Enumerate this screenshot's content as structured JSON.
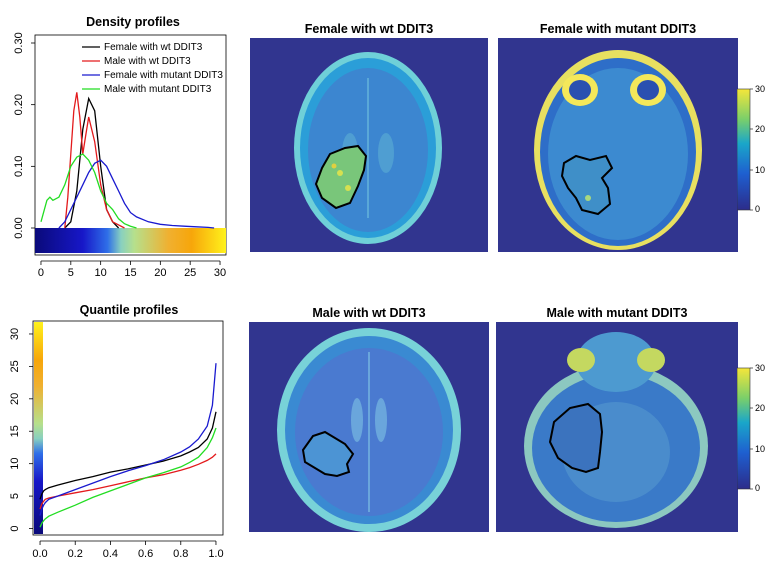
{
  "chart_data": [
    {
      "type": "line",
      "title": "Density profiles",
      "xlim": [
        -1,
        31
      ],
      "ylim": [
        0,
        0.3
      ],
      "x_ticks": [
        0,
        5,
        10,
        15,
        20,
        25,
        30
      ],
      "y_ticks": [
        0.0,
        0.1,
        0.2,
        0.3
      ],
      "y_tick_labels": [
        "0.00",
        "0.10",
        "0.20",
        "0.30"
      ],
      "legend_position": "top-right",
      "colorbar_range": [
        0,
        30
      ],
      "series": [
        {
          "name": "Female with wt DDIT3",
          "color": "#000000",
          "x": [
            4,
            5,
            6,
            7,
            8,
            9,
            10,
            11,
            12,
            13
          ],
          "y": [
            0.0,
            0.01,
            0.06,
            0.16,
            0.21,
            0.19,
            0.1,
            0.03,
            0.01,
            0.0
          ]
        },
        {
          "name": "Male with wt DDIT3",
          "color": "#e31a1c",
          "x": [
            4,
            4.5,
            5,
            5.5,
            6,
            6.5,
            7,
            7.5,
            8,
            9,
            10,
            11,
            12,
            13,
            14
          ],
          "y": [
            0.0,
            0.05,
            0.12,
            0.19,
            0.22,
            0.18,
            0.12,
            0.15,
            0.18,
            0.14,
            0.07,
            0.03,
            0.01,
            0.005,
            0.0
          ]
        },
        {
          "name": "Female with mutant DDIT3",
          "color": "#1a1acf",
          "x": [
            3,
            4,
            5,
            6,
            7,
            8,
            9,
            10,
            11,
            12,
            13,
            14,
            15,
            16,
            18,
            20,
            22,
            24,
            26,
            28,
            29
          ],
          "y": [
            0.0,
            0.01,
            0.03,
            0.05,
            0.07,
            0.09,
            0.105,
            0.11,
            0.1,
            0.08,
            0.06,
            0.04,
            0.025,
            0.018,
            0.01,
            0.006,
            0.004,
            0.003,
            0.002,
            0.001,
            0.0
          ]
        },
        {
          "name": "Male with mutant DDIT3",
          "color": "#22dd22",
          "x": [
            0,
            1,
            1.5,
            2,
            3,
            4,
            5,
            6,
            7,
            8,
            9,
            10,
            11,
            12,
            13,
            14,
            15,
            16
          ],
          "y": [
            0.01,
            0.045,
            0.05,
            0.045,
            0.05,
            0.07,
            0.1,
            0.115,
            0.12,
            0.11,
            0.09,
            0.06,
            0.04,
            0.03,
            0.015,
            0.007,
            0.003,
            0.0
          ]
        }
      ]
    },
    {
      "type": "line",
      "title": "Quantile profiles",
      "xlim": [
        -0.04,
        1.04
      ],
      "ylim": [
        -1,
        32
      ],
      "x_ticks": [
        0.0,
        0.2,
        0.4,
        0.6,
        0.8,
        1.0
      ],
      "x_tick_labels": [
        "0.0",
        "0.2",
        "0.4",
        "0.6",
        "0.8",
        "1.0"
      ],
      "y_ticks": [
        0,
        5,
        10,
        15,
        20,
        25,
        30
      ],
      "colorbar_range": [
        0,
        30
      ],
      "series": [
        {
          "color": "#000000",
          "x": [
            0.0,
            0.01,
            0.02,
            0.03,
            0.05,
            0.1,
            0.2,
            0.3,
            0.4,
            0.5,
            0.6,
            0.7,
            0.8,
            0.85,
            0.9,
            0.95,
            0.98,
            1.0
          ],
          "y": [
            4.5,
            5.3,
            5.8,
            6.0,
            6.3,
            6.7,
            7.4,
            8.0,
            8.7,
            9.2,
            9.8,
            10.4,
            11.2,
            11.8,
            12.5,
            13.8,
            15.5,
            18.0
          ]
        },
        {
          "color": "#e31a1c",
          "x": [
            0.0,
            0.01,
            0.02,
            0.03,
            0.05,
            0.1,
            0.2,
            0.3,
            0.4,
            0.5,
            0.6,
            0.7,
            0.8,
            0.85,
            0.9,
            0.95,
            0.98,
            1.0
          ],
          "y": [
            3.0,
            3.8,
            4.2,
            4.5,
            4.7,
            5.0,
            5.5,
            6.0,
            6.6,
            7.2,
            7.8,
            8.3,
            9.0,
            9.4,
            9.9,
            10.5,
            11.0,
            11.5
          ]
        },
        {
          "color": "#1a1acf",
          "x": [
            0.0,
            0.01,
            0.02,
            0.03,
            0.05,
            0.1,
            0.2,
            0.3,
            0.4,
            0.5,
            0.6,
            0.7,
            0.8,
            0.85,
            0.9,
            0.95,
            0.98,
            1.0
          ],
          "y": [
            2.0,
            3.0,
            3.6,
            4.0,
            4.5,
            5.0,
            6.0,
            7.0,
            8.0,
            8.9,
            9.7,
            10.6,
            11.8,
            12.6,
            13.8,
            15.8,
            19.0,
            25.5
          ]
        },
        {
          "color": "#22dd22",
          "x": [
            0.0,
            0.01,
            0.02,
            0.03,
            0.05,
            0.1,
            0.2,
            0.3,
            0.4,
            0.5,
            0.6,
            0.7,
            0.8,
            0.85,
            0.9,
            0.95,
            0.98,
            1.0
          ],
          "y": [
            0.2,
            0.8,
            1.2,
            1.5,
            1.9,
            2.5,
            3.6,
            4.8,
            5.8,
            6.8,
            7.8,
            8.6,
            9.5,
            10.2,
            11.0,
            12.5,
            14.0,
            15.5
          ]
        }
      ]
    }
  ],
  "images": [
    {
      "title": "Female with wt DDIT3"
    },
    {
      "title": "Female with mutant DDIT3"
    },
    {
      "title": "Male with wt DDIT3"
    },
    {
      "title": "Male with mutant DDIT3"
    }
  ],
  "colorbars": [
    {
      "ticks": [
        "30",
        "20",
        "10",
        "0"
      ]
    },
    {
      "ticks": [
        "30",
        "20",
        "10",
        "0"
      ]
    }
  ],
  "colors": {
    "mri_background": "#31358f",
    "scale": [
      "#2c2c8a",
      "#1e5fd0",
      "#1aa6c9",
      "#7acf6a",
      "#f5e63a"
    ]
  }
}
